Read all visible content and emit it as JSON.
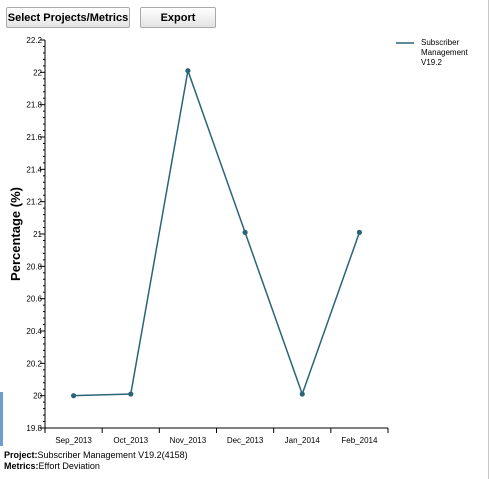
{
  "toolbar": {
    "select_label": "Select Projects/Metrics",
    "export_label": "Export"
  },
  "footer": {
    "project_label": "Project:",
    "project_value": "Subscriber Management V19.2(4158)",
    "metrics_label": "Metrics:",
    "metrics_value": "Effort Deviation"
  },
  "chart_data": {
    "type": "line",
    "ylabel": "Percentage (%)",
    "xlabel": "",
    "categories": [
      "Sep_2013",
      "Oct_2013",
      "Nov_2013",
      "Dec_2013",
      "Jan_2014",
      "Feb_2014"
    ],
    "series": [
      {
        "name": "Subscriber Management V19.2",
        "values": [
          20.0,
          20.01,
          22.01,
          21.01,
          20.01,
          21.01
        ],
        "color": "#2a6479"
      }
    ],
    "ylim": [
      19.8,
      22.2
    ],
    "yticks": [
      "19.8",
      "20",
      "20.2",
      "20.4",
      "20.6",
      "20.8",
      "21",
      "21.2",
      "21.4",
      "21.6",
      "21.8",
      "22",
      "22.2"
    ],
    "legend_position": "top-right",
    "grid": false
  }
}
